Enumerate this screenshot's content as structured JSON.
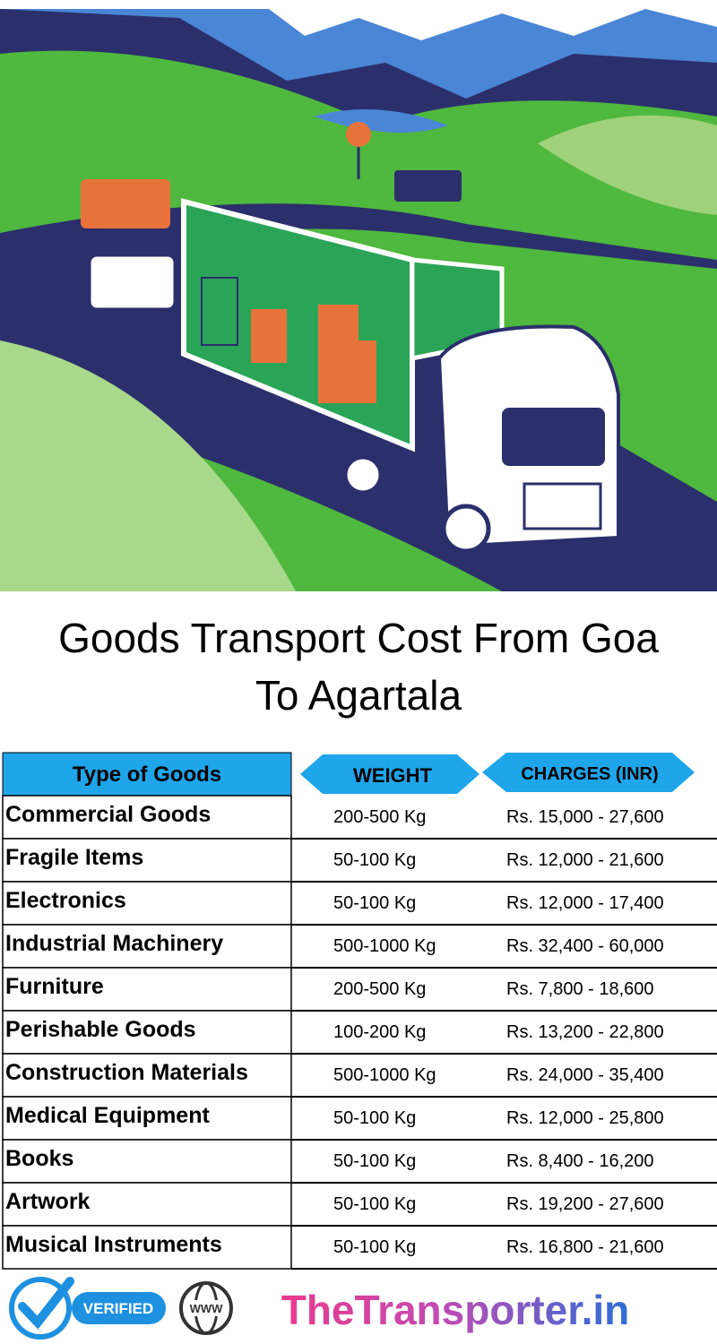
{
  "header": {
    "title_line1": "Goods Transport Cost From Goa",
    "title_line2": "To Agartala"
  },
  "table": {
    "columns": [
      "Type of Goods",
      "WEIGHT",
      "CHARGES (INR)"
    ],
    "rows": [
      [
        "Commercial Goods",
        "200-500 Kg",
        "Rs. 15,000 - 27,600"
      ],
      [
        "Fragile Items",
        "50-100 Kg",
        "Rs. 12,000 - 21,600"
      ],
      [
        "Electronics",
        "50-100 Kg",
        "Rs. 12,000 - 17,400"
      ],
      [
        "Industrial Machinery",
        "500-1000 Kg",
        "Rs. 32,400 - 60,000"
      ],
      [
        "Furniture",
        "200-500 Kg",
        "Rs. 7,800 - 18,600"
      ],
      [
        "Perishable Goods",
        "100-200 Kg",
        "Rs. 13,200 - 22,800"
      ],
      [
        "Construction Materials",
        "500-1000 Kg",
        "Rs. 24,000 - 35,400"
      ],
      [
        "Medical Equipment",
        "50-100 Kg",
        "Rs. 12,000 - 25,800"
      ],
      [
        "Books",
        "50-100 Kg",
        "Rs. 8,400 - 16,200"
      ],
      [
        "Artwork",
        "50-100 Kg",
        "Rs. 19,200 - 27,600"
      ],
      [
        "Musical Instruments",
        "50-100 Kg",
        "Rs. 16,800 - 21,600"
      ]
    ]
  },
  "footer": {
    "badge": "VERIFIED",
    "globe": "WWW",
    "brand": "TheTransporter.in"
  }
}
